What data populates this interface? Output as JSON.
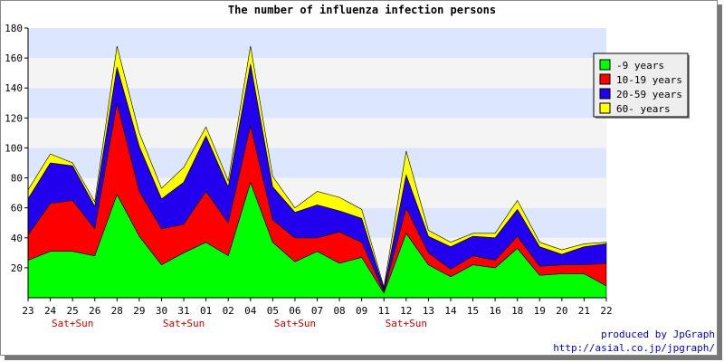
{
  "chart_data": {
    "type": "area",
    "title": "The number of influenza infection persons",
    "xlabel": "",
    "ylabel": "",
    "ylim": [
      0,
      180
    ],
    "yticks": [
      20,
      40,
      60,
      80,
      100,
      120,
      140,
      160,
      180
    ],
    "categories": [
      "23",
      "24",
      "25",
      "26",
      "28",
      "29",
      "30",
      "31",
      "01",
      "02",
      "04",
      "05",
      "06",
      "07",
      "08",
      "09",
      "11",
      "12",
      "13",
      "14",
      "15",
      "16",
      "18",
      "19",
      "20",
      "21",
      "22"
    ],
    "weekend_labels": [
      {
        "index": 2,
        "text": "Sat+Sun"
      },
      {
        "index": 7,
        "text": "Sat+Sun"
      },
      {
        "index": 12,
        "text": "Sat+Sun"
      },
      {
        "index": 17,
        "text": "Sat+Sun"
      }
    ],
    "stacked": true,
    "series": [
      {
        "name": "-9 years",
        "color": "#00ff00",
        "values": [
          25,
          31,
          31,
          28,
          69,
          41,
          22,
          30,
          37,
          28,
          77,
          37,
          24,
          31,
          23,
          27,
          3,
          43,
          22,
          14,
          22,
          20,
          33,
          15,
          16,
          16,
          8
        ]
      },
      {
        "name": "10-19 years",
        "color": "#ff0000",
        "values": [
          17,
          32,
          34,
          18,
          61,
          30,
          24,
          19,
          34,
          22,
          38,
          15,
          16,
          9,
          21,
          10,
          1,
          17,
          8,
          5,
          6,
          5,
          8,
          6,
          6,
          6,
          15
        ]
      },
      {
        "name": "20-59 years",
        "color": "#2200ee",
        "values": [
          24,
          27,
          23,
          15,
          24,
          30,
          20,
          28,
          37,
          24,
          41,
          22,
          17,
          22,
          14,
          16,
          2,
          22,
          11,
          15,
          13,
          15,
          18,
          13,
          7,
          12,
          13
        ]
      },
      {
        "name": "60- years",
        "color": "#ffff00",
        "values": [
          6,
          6,
          2,
          3,
          14,
          9,
          7,
          10,
          6,
          4,
          12,
          7,
          3,
          9,
          9,
          6,
          1,
          16,
          4,
          3,
          2,
          3,
          6,
          3,
          3,
          2,
          1
        ]
      }
    ],
    "grid": true,
    "legend_position": "top-right",
    "band_colors": [
      "#f4f4f4",
      "#dde6ff"
    ]
  },
  "credits": {
    "line1": "produced by JpGraph",
    "line2": "http://asial.co.jp/jpgraph/"
  }
}
